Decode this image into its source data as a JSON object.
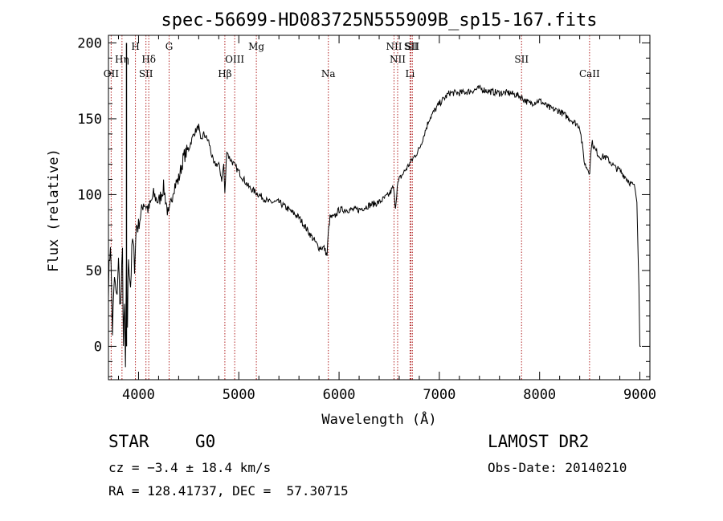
{
  "chart_data": {
    "type": "line",
    "title": "spec-56699-HD083725N555909B_sp15-167.fits",
    "xlabel": "Wavelength (Å)",
    "ylabel": "Flux (relative)",
    "xlim": [
      3700,
      9100
    ],
    "ylim": [
      -22,
      205
    ],
    "x_ticks": [
      4000,
      5000,
      6000,
      7000,
      8000,
      9000
    ],
    "x_tick_labels": [
      "4000",
      "5000",
      "6000",
      "7000",
      "8000",
      "9000"
    ],
    "y_ticks": [
      0,
      50,
      100,
      150,
      200
    ],
    "y_tick_labels": [
      "0",
      "50",
      "100",
      "150",
      "200"
    ],
    "grid": false,
    "legend": "none",
    "series": [
      {
        "x": [
          3700,
          3720,
          3740,
          3760,
          3780,
          3800,
          3820,
          3840,
          3850,
          3860,
          3870,
          3880,
          3890,
          3900,
          3920,
          3940,
          3960,
          3980,
          4000,
          4050,
          4100,
          4150,
          4200,
          4250,
          4300,
          4350,
          4400,
          4450,
          4500,
          4550,
          4600,
          4620,
          4650,
          4700,
          4750,
          4800,
          4830,
          4850,
          4861,
          4880,
          4900,
          4950,
          5000,
          5100,
          5200,
          5300,
          5400,
          5500,
          5600,
          5700,
          5800,
          5850,
          5880,
          5893,
          5910,
          5950,
          6000,
          6100,
          6200,
          6300,
          6400,
          6500,
          6540,
          6563,
          6580,
          6600,
          6650,
          6700,
          6750,
          6800,
          6900,
          7000,
          7100,
          7200,
          7300,
          7400,
          7500,
          7600,
          7700,
          7800,
          7900,
          8000,
          8100,
          8200,
          8300,
          8400,
          8450,
          8500,
          8520,
          8550,
          8600,
          8650,
          8700,
          8750,
          8800,
          8850,
          8900,
          8950,
          8970,
          8990,
          9000,
          9005,
          9010
        ],
        "y": [
          40,
          70,
          10,
          45,
          30,
          55,
          25,
          60,
          0,
          25,
          -15,
          50,
          15,
          60,
          40,
          70,
          55,
          80,
          80,
          95,
          90,
          100,
          95,
          105,
          85,
          105,
          110,
          125,
          130,
          140,
          145,
          135,
          140,
          135,
          120,
          120,
          110,
          120,
          100,
          130,
          125,
          120,
          115,
          105,
          100,
          95,
          95,
          90,
          85,
          75,
          65,
          65,
          60,
          75,
          85,
          85,
          90,
          90,
          90,
          93,
          95,
          100,
          105,
          92,
          105,
          110,
          115,
          120,
          125,
          130,
          150,
          160,
          167,
          167,
          168,
          170,
          168,
          167,
          167,
          165,
          160,
          162,
          157,
          155,
          150,
          145,
          120,
          115,
          135,
          130,
          125,
          125,
          122,
          118,
          116,
          112,
          108,
          105,
          95,
          40,
          0,
          0,
          0
        ]
      }
    ],
    "lines": [
      {
        "label": "OII",
        "x": 3727,
        "row": 3
      },
      {
        "label": "Hη",
        "x": 3835,
        "row": 1
      },
      {
        "label": "H",
        "x": 3969,
        "row": 0
      },
      {
        "label": "Hδ",
        "x": 4102,
        "row": 1
      },
      {
        "label": "SII",
        "x": 4074,
        "row": 3
      },
      {
        "label": "G",
        "x": 4305,
        "row": 0
      },
      {
        "label": "Hβ",
        "x": 4861,
        "row": 3
      },
      {
        "label": "OIII",
        "x": 4959,
        "row": 2
      },
      {
        "label": "Mg",
        "x": 5175,
        "row": 0
      },
      {
        "label": "Na",
        "x": 5893,
        "row": 3
      },
      {
        "label": "NII",
        "x": 6548,
        "row": 0
      },
      {
        "label": "NII",
        "x": 6584,
        "row": 2
      },
      {
        "label": "SII",
        "x": 6717,
        "row": 0
      },
      {
        "label": "Li",
        "x": 6708,
        "row": 3
      },
      {
        "label": "SII",
        "x": 6731,
        "row": 0
      },
      {
        "label": "SII",
        "x": 7820,
        "row": 2
      },
      {
        "label": "CaII",
        "x": 8498,
        "row": 3
      }
    ],
    "info": {
      "class_label": "STAR",
      "subclass": "G0",
      "survey": "LAMOST DR2",
      "redshift": "cz = −3.4 ± 18.4 km/s",
      "obs_date": "Obs-Date: 20140210",
      "coords": "RA = 128.41737, DEC =  57.30715"
    }
  }
}
